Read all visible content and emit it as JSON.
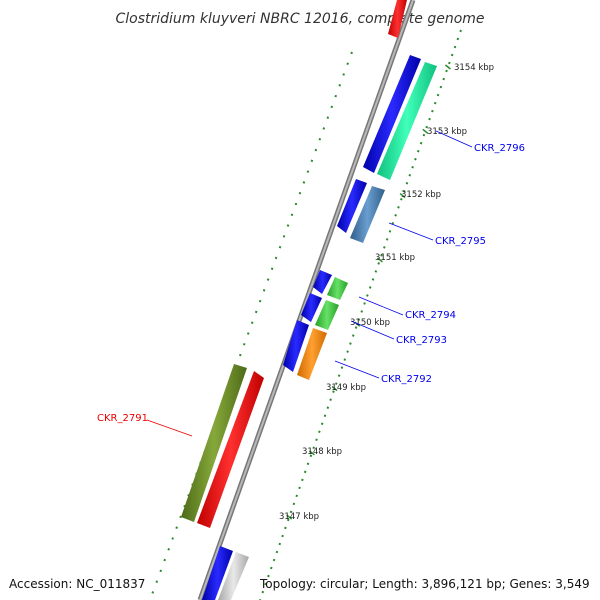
{
  "title": "Clostridium kluyveri NBRC 12016, complete genome",
  "footer": {
    "accession": "Accession: NC_011837",
    "summary": "Topology: circular; Length: 3,896,121 bp; Genes: 3,549"
  },
  "ticks": [
    {
      "label": "3147 kbp",
      "pos_kbp": 3147
    },
    {
      "label": "3148 kbp",
      "pos_kbp": 3148
    },
    {
      "label": "3149 kbp",
      "pos_kbp": 3149
    },
    {
      "label": "3150 kbp",
      "pos_kbp": 3150
    },
    {
      "label": "3151 kbp",
      "pos_kbp": 3151
    },
    {
      "label": "3152 kbp",
      "pos_kbp": 3152
    },
    {
      "label": "3153 kbp",
      "pos_kbp": 3153
    },
    {
      "label": "3154 kbp",
      "pos_kbp": 3154
    }
  ],
  "genes": [
    {
      "name": "CKR_2796",
      "color": "#0000ee"
    },
    {
      "name": "CKR_2795",
      "color": "#0000ee"
    },
    {
      "name": "CKR_2794",
      "color": "#0000ee"
    },
    {
      "name": "CKR_2793",
      "color": "#0000ee"
    },
    {
      "name": "CKR_2792",
      "color": "#0000ee"
    },
    {
      "name": "CKR_2791",
      "color": "#ee0000"
    }
  ],
  "colors": {
    "backbone": "#8c8c8c",
    "dots": "#2a8a2a",
    "cds_blue": "#0000ee",
    "rna_red": "#ff1010",
    "spring_green": "#20f0a0",
    "steel_blue": "#4a80b4",
    "lime": "#44cc44",
    "orange": "#ff8c10",
    "olive": "#6b8e23",
    "grey": "#cccccc"
  }
}
